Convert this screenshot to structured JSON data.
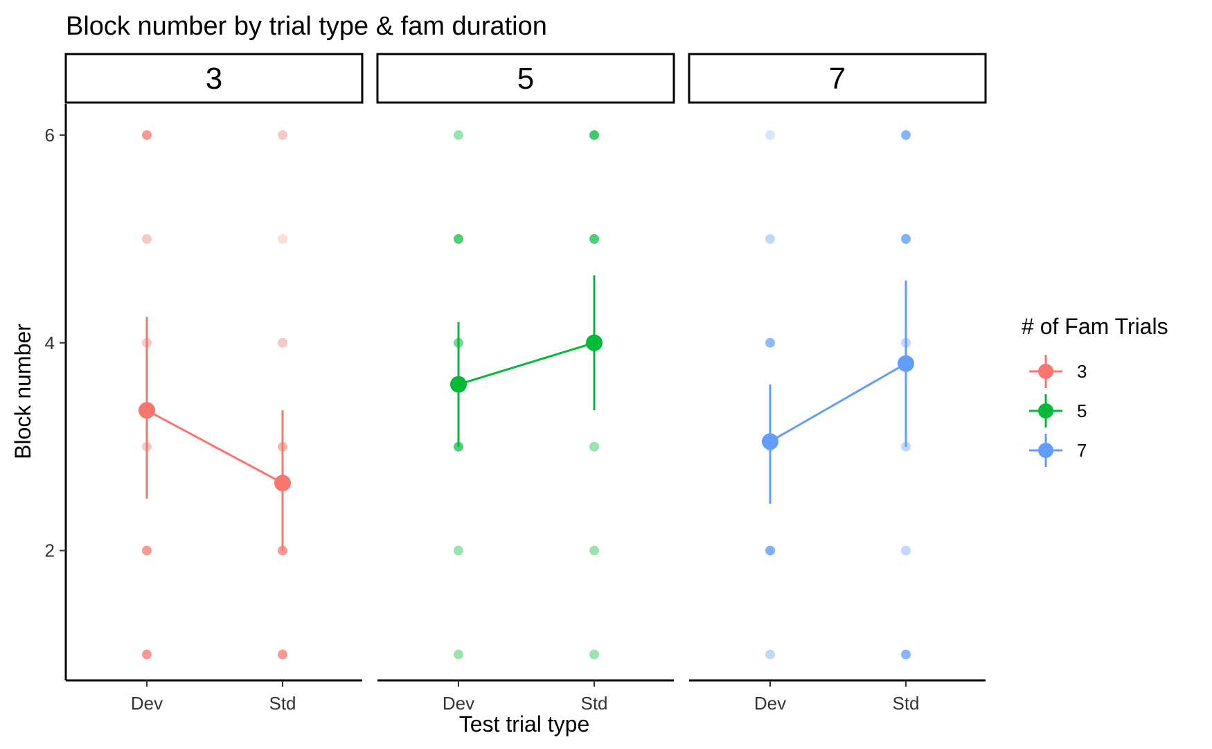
{
  "chart_data": {
    "type": "scatter",
    "title": "Block number by trial type & fam duration",
    "xlabel": "Test trial type",
    "ylabel": "Block number",
    "categories": [
      "Dev",
      "Std"
    ],
    "ylim": [
      0.75,
      6.3
    ],
    "yticks": [
      2,
      4,
      6
    ],
    "grid": false,
    "legend": {
      "title": "# of Fam Trials",
      "position": "right",
      "entries": [
        "3",
        "5",
        "7"
      ]
    },
    "facets": [
      {
        "label": "3",
        "color": "#F8766D",
        "raw_points": [
          {
            "x": "Dev",
            "y": 6,
            "opacity": 0.75
          },
          {
            "x": "Dev",
            "y": 5,
            "opacity": 0.4
          },
          {
            "x": "Dev",
            "y": 4,
            "opacity": 0.4
          },
          {
            "x": "Dev",
            "y": 3,
            "opacity": 0.4
          },
          {
            "x": "Dev",
            "y": 2,
            "opacity": 0.75
          },
          {
            "x": "Dev",
            "y": 1,
            "opacity": 0.75
          },
          {
            "x": "Std",
            "y": 6,
            "opacity": 0.4
          },
          {
            "x": "Std",
            "y": 5,
            "opacity": 0.25
          },
          {
            "x": "Std",
            "y": 4,
            "opacity": 0.4
          },
          {
            "x": "Std",
            "y": 3,
            "opacity": 0.55
          },
          {
            "x": "Std",
            "y": 2,
            "opacity": 0.75
          },
          {
            "x": "Std",
            "y": 1,
            "opacity": 0.75
          }
        ],
        "means": [
          {
            "x": "Dev",
            "y": 3.35,
            "ymin": 2.5,
            "ymax": 4.25
          },
          {
            "x": "Std",
            "y": 2.65,
            "ymin": 2.0,
            "ymax": 3.35
          }
        ]
      },
      {
        "label": "5",
        "color": "#00BA38",
        "raw_points": [
          {
            "x": "Dev",
            "y": 6,
            "opacity": 0.4
          },
          {
            "x": "Dev",
            "y": 5,
            "opacity": 0.7
          },
          {
            "x": "Dev",
            "y": 4,
            "opacity": 0.55
          },
          {
            "x": "Dev",
            "y": 3,
            "opacity": 0.7
          },
          {
            "x": "Dev",
            "y": 2,
            "opacity": 0.4
          },
          {
            "x": "Dev",
            "y": 1,
            "opacity": 0.4
          },
          {
            "x": "Std",
            "y": 6,
            "opacity": 0.75
          },
          {
            "x": "Std",
            "y": 5,
            "opacity": 0.7
          },
          {
            "x": "Std",
            "y": 4,
            "opacity": 0.55
          },
          {
            "x": "Std",
            "y": 3,
            "opacity": 0.4
          },
          {
            "x": "Std",
            "y": 2,
            "opacity": 0.4
          },
          {
            "x": "Std",
            "y": 1,
            "opacity": 0.4
          }
        ],
        "means": [
          {
            "x": "Dev",
            "y": 3.6,
            "ymin": 3.0,
            "ymax": 4.2
          },
          {
            "x": "Std",
            "y": 4.0,
            "ymin": 3.35,
            "ymax": 4.65
          }
        ]
      },
      {
        "label": "7",
        "color": "#619CFF",
        "raw_points": [
          {
            "x": "Dev",
            "y": 6,
            "opacity": 0.25
          },
          {
            "x": "Dev",
            "y": 5,
            "opacity": 0.4
          },
          {
            "x": "Dev",
            "y": 4,
            "opacity": 0.7
          },
          {
            "x": "Dev",
            "y": 3,
            "opacity": 0.4
          },
          {
            "x": "Dev",
            "y": 2,
            "opacity": 0.8
          },
          {
            "x": "Dev",
            "y": 1,
            "opacity": 0.4
          },
          {
            "x": "Std",
            "y": 6,
            "opacity": 0.75
          },
          {
            "x": "Std",
            "y": 5,
            "opacity": 0.8
          },
          {
            "x": "Std",
            "y": 4,
            "opacity": 0.4
          },
          {
            "x": "Std",
            "y": 3,
            "opacity": 0.4
          },
          {
            "x": "Std",
            "y": 2,
            "opacity": 0.4
          },
          {
            "x": "Std",
            "y": 1,
            "opacity": 0.75
          }
        ],
        "means": [
          {
            "x": "Dev",
            "y": 3.05,
            "ymin": 2.45,
            "ymax": 3.6
          },
          {
            "x": "Std",
            "y": 3.8,
            "ymin": 3.0,
            "ymax": 4.6
          }
        ]
      }
    ]
  }
}
